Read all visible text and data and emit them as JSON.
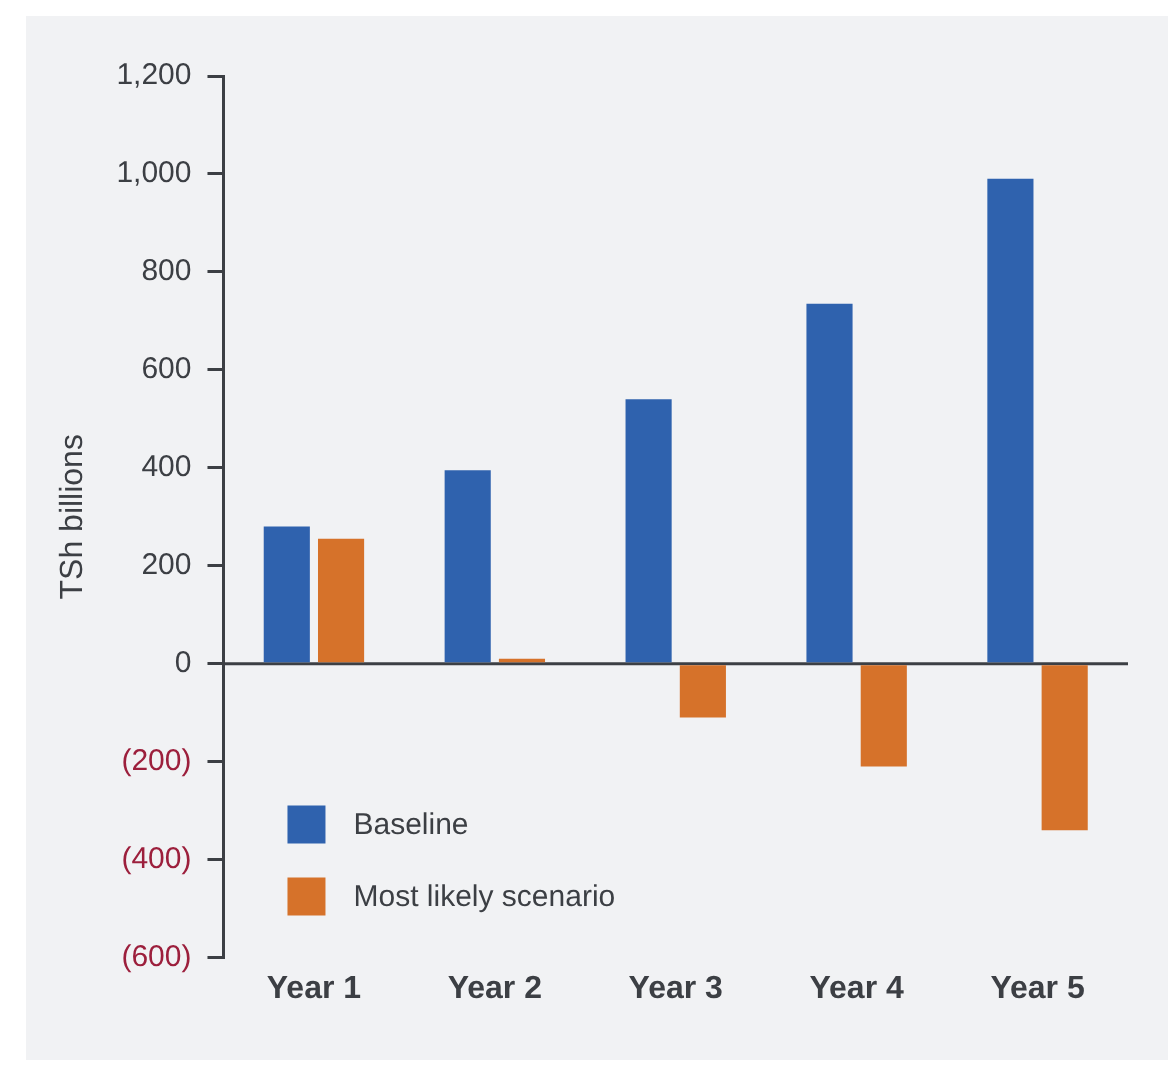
{
  "chart_data": {
    "type": "bar",
    "ylabel": "TSh billions",
    "categories": [
      "Year 1",
      "Year 2",
      "Year 3",
      "Year 4",
      "Year 5"
    ],
    "series": [
      {
        "name": "Baseline",
        "color": "#2f62ae",
        "values": [
          280,
          395,
          540,
          735,
          990
        ]
      },
      {
        "name": "Most likely scenario",
        "color": "#d6722a",
        "values": [
          255,
          10,
          -110,
          -210,
          -340
        ]
      }
    ],
    "ylim": [
      -600,
      1200
    ],
    "yticks": [
      {
        "value": -600,
        "label": "(600)"
      },
      {
        "value": -400,
        "label": "(400)"
      },
      {
        "value": -200,
        "label": "(200)"
      },
      0,
      200,
      400,
      600,
      800,
      {
        "value": 1000,
        "label": "1,000"
      },
      {
        "value": 1200,
        "label": "1,200"
      }
    ],
    "ref_lines": [
      {
        "axis": "y",
        "value": 0
      }
    ],
    "grid": false,
    "legend": "bottom left"
  }
}
